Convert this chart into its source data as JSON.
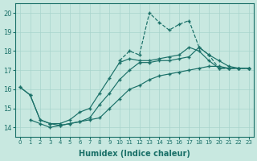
{
  "xlabel": "Humidex (Indice chaleur)",
  "bg_color": "#c8e8e0",
  "line_color": "#1a7068",
  "grid_color": "#a8d4cc",
  "xlim_min": -0.5,
  "xlim_max": 23.5,
  "ylim_min": 13.5,
  "ylim_max": 20.5,
  "xticks": [
    0,
    1,
    2,
    3,
    4,
    5,
    6,
    7,
    8,
    9,
    10,
    11,
    12,
    13,
    14,
    15,
    16,
    17,
    18,
    19,
    20,
    21,
    22,
    23
  ],
  "yticks": [
    14,
    15,
    16,
    17,
    18,
    19,
    20
  ],
  "line1_x": [
    0,
    1,
    2,
    3,
    4,
    5,
    6,
    7,
    8,
    9,
    10,
    11,
    12,
    13,
    14,
    15,
    16,
    17,
    18,
    19,
    20,
    21,
    22,
    23
  ],
  "line1_y": [
    16.1,
    15.7,
    14.4,
    14.2,
    14.1,
    14.2,
    14.3,
    14.4,
    14.5,
    15.0,
    15.5,
    16.0,
    16.2,
    16.5,
    16.7,
    16.8,
    16.9,
    17.0,
    17.1,
    17.2,
    17.2,
    17.1,
    17.1,
    17.1
  ],
  "line2_x": [
    1,
    2,
    3,
    4,
    5,
    6,
    7,
    8,
    9,
    10,
    11,
    12,
    13,
    14,
    15,
    16,
    17,
    18,
    19,
    20,
    21,
    22,
    23
  ],
  "line2_y": [
    14.4,
    14.2,
    14.0,
    14.1,
    14.2,
    14.3,
    14.5,
    15.2,
    15.8,
    16.5,
    17.0,
    17.4,
    17.4,
    17.5,
    17.5,
    17.6,
    17.7,
    18.2,
    17.8,
    17.5,
    17.2,
    17.1,
    17.1
  ],
  "line3_x": [
    0,
    1,
    2,
    3,
    4,
    5,
    6,
    7,
    8,
    9,
    10,
    11,
    12,
    13,
    14,
    15,
    16,
    17,
    18,
    19,
    20,
    21,
    22,
    23
  ],
  "line3_y": [
    16.1,
    15.7,
    14.4,
    14.2,
    14.2,
    14.4,
    14.8,
    15.0,
    15.8,
    16.6,
    17.4,
    17.6,
    17.5,
    17.5,
    17.6,
    17.7,
    17.8,
    18.2,
    18.0,
    17.5,
    17.1,
    17.1,
    17.1,
    17.1
  ],
  "line4_x": [
    10,
    11,
    12,
    13,
    14,
    15,
    16,
    17,
    18,
    19,
    20,
    21,
    22,
    23
  ],
  "line4_y": [
    17.5,
    18.0,
    17.8,
    20.0,
    19.5,
    19.1,
    19.4,
    19.6,
    18.2,
    17.8,
    17.1,
    17.1,
    17.1,
    17.1
  ],
  "line4_dashed": true
}
